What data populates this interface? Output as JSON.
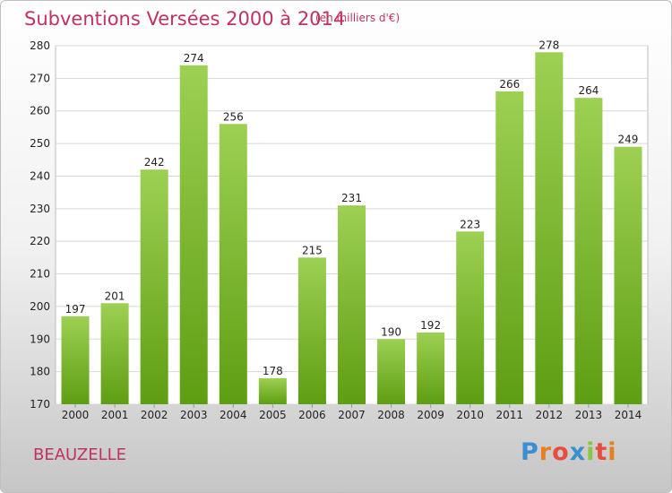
{
  "header": {
    "title": "Subventions Versées 2000 à 2014",
    "unit": "(en milliers d'€)"
  },
  "footer": {
    "place": "BEAUZELLE",
    "logo": "Proxiti",
    "logo_colors": [
      "#3a8fd1",
      "#e67e22",
      "#e74c3c",
      "#3a8fd1",
      "#8cc63f",
      "#e74c3c",
      "#e67e22"
    ]
  },
  "colors": {
    "bar_top": "#9dd053",
    "bar_bottom": "#5e9e12",
    "title": "#c0325f"
  },
  "chart_data": {
    "type": "bar",
    "categories": [
      "2000",
      "2001",
      "2002",
      "2003",
      "2004",
      "2005",
      "2006",
      "2007",
      "2008",
      "2009",
      "2010",
      "2011",
      "2012",
      "2013",
      "2014"
    ],
    "values": [
      197,
      201,
      242,
      274,
      256,
      178,
      215,
      231,
      190,
      192,
      223,
      266,
      278,
      264,
      249
    ],
    "ylim": [
      170,
      280
    ],
    "yticks": [
      170,
      180,
      190,
      200,
      210,
      220,
      230,
      240,
      250,
      260,
      270,
      280
    ],
    "grid": true,
    "data_labels": true
  }
}
